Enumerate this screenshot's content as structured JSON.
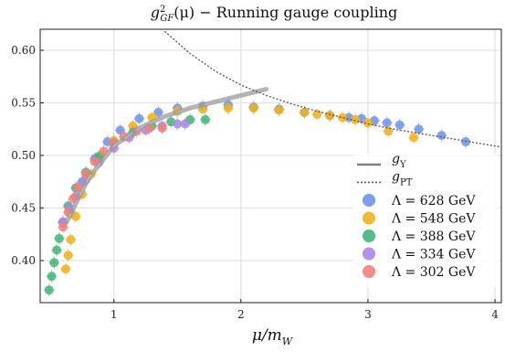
{
  "chart_data": {
    "type": "scatter",
    "title": "g²_GF(μ) − Running gauge coupling",
    "title_parts": {
      "g": "g",
      "sup": "2",
      "sub": "GF",
      "rest": "(μ) − Running gauge coupling"
    },
    "xlabel": "μ/m_W",
    "xlabel_parts": {
      "mu": "μ/m",
      "sub": "W"
    },
    "ylabel": "",
    "xlim": [
      0.42,
      4.05
    ],
    "ylim": [
      0.36,
      0.62
    ],
    "xticks": [
      1,
      2,
      3,
      4
    ],
    "yticks": [
      0.4,
      0.45,
      0.5,
      0.55,
      0.6
    ],
    "xtick_labels": [
      "1",
      "2",
      "3",
      "4"
    ],
    "ytick_labels": [
      "0.40",
      "0.45",
      "0.50",
      "0.55",
      "0.60"
    ],
    "grid": true,
    "legend_position": "bottom-right",
    "legend": [
      {
        "type": "line",
        "style": "solid",
        "label_main": "g",
        "label_sub": "Y",
        "color": "#7f7f7f"
      },
      {
        "type": "line",
        "style": "dotted",
        "label_main": "g",
        "label_sub": "PT",
        "color": "#555555"
      },
      {
        "type": "marker",
        "label": "Λ = 628 GeV",
        "color": "#6f94ea"
      },
      {
        "type": "marker",
        "label": "Λ = 548 GeV",
        "color": "#efb21c"
      },
      {
        "type": "marker",
        "label": "Λ = 388 GeV",
        "color": "#43b579"
      },
      {
        "type": "marker",
        "label": "Λ = 334 GeV",
        "color": "#a986ec"
      },
      {
        "type": "marker",
        "label": "Λ = 302 GeV",
        "color": "#f47f78"
      }
    ],
    "curves": {
      "g_Y": {
        "color": "#9a9a9a",
        "x": [
          0.63,
          0.8,
          1.0,
          1.2,
          1.4,
          1.6,
          1.8,
          2.0,
          2.2
        ],
        "y": [
          0.437,
          0.478,
          0.509,
          0.526,
          0.537,
          0.545,
          0.551,
          0.557,
          0.563
        ]
      },
      "g_PT": {
        "color": "#555555",
        "x": [
          1.4,
          1.6,
          1.8,
          2.0,
          2.2,
          2.4,
          2.6,
          2.8,
          3.0,
          3.2,
          3.4,
          3.6,
          3.8,
          4.05
        ],
        "y": [
          0.618,
          0.597,
          0.58,
          0.567,
          0.557,
          0.549,
          0.542,
          0.536,
          0.53,
          0.525,
          0.521,
          0.517,
          0.513,
          0.508
        ]
      }
    },
    "series": [
      {
        "name": "Λ = 628 GeV",
        "color": "#6f94ea",
        "x": [
          0.66,
          0.75,
          0.85,
          0.95,
          1.05,
          1.2,
          1.35,
          1.5,
          1.7,
          1.9,
          2.1,
          2.3,
          2.5,
          2.7,
          2.85,
          2.95,
          3.05,
          3.15,
          3.25,
          3.4,
          3.58,
          3.77
        ],
        "y": [
          0.445,
          0.475,
          0.497,
          0.513,
          0.524,
          0.535,
          0.541,
          0.545,
          0.547,
          0.548,
          0.546,
          0.544,
          0.541,
          0.538,
          0.536,
          0.535,
          0.533,
          0.531,
          0.529,
          0.525,
          0.519,
          0.513
        ]
      },
      {
        "name": "Λ = 548 GeV",
        "color": "#efb21c",
        "x": [
          0.62,
          0.64,
          0.66,
          0.7,
          0.75,
          0.82,
          0.9,
          1.0,
          1.15,
          1.3,
          1.5,
          1.7,
          1.9,
          2.1,
          2.3,
          2.5,
          2.6,
          2.7,
          2.8,
          2.9,
          3.0,
          3.16,
          3.36
        ],
        "y": [
          0.392,
          0.405,
          0.42,
          0.442,
          0.463,
          0.482,
          0.499,
          0.514,
          0.528,
          0.536,
          0.542,
          0.544,
          0.545,
          0.545,
          0.543,
          0.541,
          0.539,
          0.538,
          0.536,
          0.534,
          0.531,
          0.523,
          0.517
        ]
      },
      {
        "name": "Λ = 388 GeV",
        "color": "#43b579",
        "x": [
          0.49,
          0.51,
          0.53,
          0.55,
          0.57,
          0.6,
          0.64,
          0.7,
          0.78,
          0.88,
          1.0,
          1.15,
          1.3,
          1.45,
          1.6,
          1.72
        ],
        "y": [
          0.372,
          0.385,
          0.398,
          0.41,
          0.421,
          0.436,
          0.452,
          0.469,
          0.484,
          0.499,
          0.512,
          0.522,
          0.528,
          0.532,
          0.534,
          0.534
        ]
      },
      {
        "name": "Λ = 334 GeV",
        "color": "#a986ec",
        "x": [
          0.6,
          0.65,
          0.7,
          0.78,
          0.88,
          1.0,
          1.12,
          1.25,
          1.38,
          1.5,
          1.56
        ],
        "y": [
          0.437,
          0.45,
          0.461,
          0.477,
          0.493,
          0.507,
          0.517,
          0.524,
          0.528,
          0.53,
          0.53
        ]
      },
      {
        "name": "Λ = 302 GeV",
        "color": "#f47f78",
        "x": [
          0.6,
          0.64,
          0.68,
          0.72,
          0.78,
          0.85,
          0.92,
          1.0,
          1.08,
          1.18,
          1.28,
          1.38
        ],
        "y": [
          0.432,
          0.446,
          0.459,
          0.47,
          0.482,
          0.494,
          0.504,
          0.512,
          0.518,
          0.523,
          0.526,
          0.526
        ]
      }
    ]
  }
}
